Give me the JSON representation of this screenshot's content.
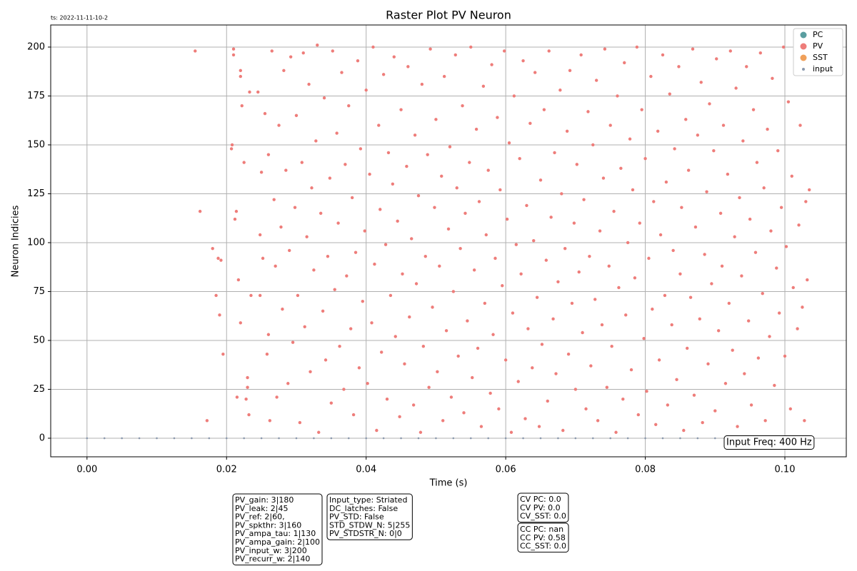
{
  "chart_data": {
    "type": "scatter",
    "title": "Raster Plot PV Neuron",
    "note": "ts: 2022-11-11-10-2",
    "x_label": "Time (s)",
    "y_label": "Neuron Indicies",
    "xlim": [
      -0.0052,
      0.1088
    ],
    "ylim": [
      -9.5,
      211.3
    ],
    "xticks": [
      {
        "value": 0,
        "label": "0.00"
      },
      {
        "value": 0.02,
        "label": "0.02"
      },
      {
        "value": 0.04,
        "label": "0.04"
      },
      {
        "value": 0.06,
        "label": "0.06"
      },
      {
        "value": 0.08,
        "label": "0.08"
      },
      {
        "value": 0.1,
        "label": "0.10"
      }
    ],
    "yticks": [
      0,
      25,
      50,
      75,
      100,
      125,
      150,
      175,
      200
    ],
    "grid": true,
    "legend": "upper right",
    "series": [
      {
        "name": "PC",
        "color": "#5a9ea0",
        "x": [],
        "values": []
      },
      {
        "name": "PV",
        "color": "#ee7d7a",
        "x": [
          0.0155,
          0.0162,
          0.0172,
          0.018,
          0.0185,
          0.0188,
          0.019,
          0.0192,
          0.0195,
          0.0207,
          0.0208,
          0.021,
          0.021,
          0.0212,
          0.0214,
          0.0215,
          0.0217,
          0.022,
          0.022,
          0.022,
          0.0222,
          0.0225,
          0.0228,
          0.023,
          0.023,
          0.0232,
          0.0233,
          0.0235,
          0.0245,
          0.0248,
          0.0248,
          0.025,
          0.0252,
          0.0255,
          0.0258,
          0.026,
          0.026,
          0.0262,
          0.0265,
          0.0268,
          0.027,
          0.0272,
          0.0275,
          0.0278,
          0.028,
          0.0282,
          0.0285,
          0.0288,
          0.029,
          0.0292,
          0.0295,
          0.0298,
          0.03,
          0.0302,
          0.0305,
          0.0308,
          0.031,
          0.0312,
          0.0315,
          0.0318,
          0.032,
          0.0322,
          0.0325,
          0.0328,
          0.033,
          0.0332,
          0.0335,
          0.0338,
          0.034,
          0.0342,
          0.0345,
          0.0348,
          0.035,
          0.0352,
          0.0355,
          0.0358,
          0.036,
          0.0362,
          0.0365,
          0.0368,
          0.037,
          0.0372,
          0.0375,
          0.0378,
          0.038,
          0.0382,
          0.0385,
          0.0388,
          0.039,
          0.0392,
          0.0395,
          0.0398,
          0.04,
          0.0402,
          0.0405,
          0.0408,
          0.041,
          0.0412,
          0.0415,
          0.0418,
          0.042,
          0.0422,
          0.0425,
          0.0428,
          0.043,
          0.0432,
          0.0435,
          0.0438,
          0.044,
          0.0442,
          0.0445,
          0.0448,
          0.045,
          0.0452,
          0.0455,
          0.0458,
          0.046,
          0.0462,
          0.0465,
          0.0468,
          0.047,
          0.0472,
          0.0475,
          0.0478,
          0.048,
          0.0482,
          0.0485,
          0.0488,
          0.049,
          0.0492,
          0.0495,
          0.0498,
          0.05,
          0.0502,
          0.0505,
          0.0508,
          0.051,
          0.0512,
          0.0515,
          0.0518,
          0.052,
          0.0522,
          0.0525,
          0.0528,
          0.053,
          0.0532,
          0.0535,
          0.0538,
          0.054,
          0.0542,
          0.0545,
          0.0548,
          0.055,
          0.0552,
          0.0555,
          0.0558,
          0.056,
          0.0562,
          0.0565,
          0.0568,
          0.057,
          0.0572,
          0.0575,
          0.0578,
          0.058,
          0.0582,
          0.0585,
          0.0588,
          0.059,
          0.0592,
          0.0595,
          0.0598,
          0.06,
          0.0602,
          0.0605,
          0.0608,
          0.061,
          0.0612,
          0.0615,
          0.0618,
          0.062,
          0.0622,
          0.0625,
          0.0628,
          0.063,
          0.0632,
          0.0635,
          0.0638,
          0.064,
          0.0642,
          0.0645,
          0.0648,
          0.065,
          0.0652,
          0.0655,
          0.0658,
          0.066,
          0.0662,
          0.0665,
          0.0668,
          0.067,
          0.0672,
          0.0675,
          0.0678,
          0.068,
          0.0682,
          0.0685,
          0.0688,
          0.069,
          0.0692,
          0.0695,
          0.0698,
          0.07,
          0.0702,
          0.0705,
          0.0708,
          0.071,
          0.0712,
          0.0715,
          0.0718,
          0.072,
          0.0722,
          0.0725,
          0.0728,
          0.073,
          0.0732,
          0.0735,
          0.0738,
          0.074,
          0.0742,
          0.0745,
          0.0748,
          0.075,
          0.0752,
          0.0755,
          0.0758,
          0.076,
          0.0762,
          0.0765,
          0.0768,
          0.077,
          0.0772,
          0.0775,
          0.0778,
          0.078,
          0.0782,
          0.0785,
          0.0788,
          0.079,
          0.0792,
          0.0795,
          0.0798,
          0.08,
          0.0802,
          0.0805,
          0.0808,
          0.081,
          0.0812,
          0.0815,
          0.0818,
          0.082,
          0.0822,
          0.0825,
          0.0828,
          0.083,
          0.0832,
          0.0835,
          0.0838,
          0.084,
          0.0842,
          0.0845,
          0.0848,
          0.085,
          0.0852,
          0.0855,
          0.0858,
          0.086,
          0.0862,
          0.0865,
          0.0868,
          0.087,
          0.0872,
          0.0875,
          0.0878,
          0.088,
          0.0882,
          0.0885,
          0.0888,
          0.089,
          0.0892,
          0.0895,
          0.0898,
          0.09,
          0.0902,
          0.0905,
          0.0908,
          0.091,
          0.0912,
          0.0915,
          0.0918,
          0.092,
          0.0922,
          0.0925,
          0.0928,
          0.093,
          0.0932,
          0.0935,
          0.0938,
          0.094,
          0.0942,
          0.0945,
          0.0948,
          0.095,
          0.0952,
          0.0955,
          0.0958,
          0.096,
          0.0962,
          0.0965,
          0.0968,
          0.097,
          0.0972,
          0.0975,
          0.0978,
          0.098,
          0.0982,
          0.0985,
          0.0988,
          0.099,
          0.0992,
          0.0995,
          0.0998,
          0.1,
          0.1002,
          0.1005,
          0.1008,
          0.101,
          0.1012,
          0.1015,
          0.1018,
          0.102,
          0.1022,
          0.1025,
          0.1028,
          0.103,
          0.1032,
          0.1035
        ],
        "values": [
          198,
          116,
          9,
          97,
          73,
          92,
          63,
          91,
          43,
          148,
          150,
          196,
          199,
          112,
          116,
          21,
          81,
          188,
          185,
          59,
          170,
          141,
          20,
          31,
          26,
          12,
          177,
          73,
          177,
          104,
          73,
          136,
          92,
          166,
          43,
          145,
          53,
          9,
          198,
          122,
          88,
          21,
          160,
          108,
          66,
          188,
          137,
          28,
          96,
          195,
          49,
          118,
          165,
          73,
          8,
          141,
          197,
          57,
          103,
          181,
          34,
          128,
          86,
          152,
          201,
          3,
          115,
          65,
          174,
          40,
          93,
          133,
          18,
          198,
          76,
          156,
          110,
          47,
          187,
          25,
          140,
          83,
          170,
          56,
          123,
          12,
          95,
          193,
          36,
          148,
          70,
          106,
          178,
          28,
          135,
          59,
          200,
          89,
          4,
          160,
          117,
          44,
          186,
          99,
          20,
          146,
          73,
          130,
          195,
          52,
          111,
          11,
          168,
          84,
          38,
          139,
          190,
          62,
          102,
          17,
          155,
          79,
          124,
          3,
          181,
          47,
          93,
          145,
          26,
          199,
          67,
          118,
          163,
          34,
          88,
          134,
          9,
          185,
          55,
          107,
          149,
          21,
          75,
          196,
          128,
          42,
          97,
          170,
          13,
          115,
          60,
          141,
          200,
          31,
          86,
          158,
          46,
          121,
          6,
          180,
          69,
          104,
          137,
          23,
          191,
          53,
          92,
          164,
          15,
          127,
          78,
          198,
          40,
          112,
          151,
          3,
          64,
          175,
          99,
          29,
          143,
          84,
          193,
          10,
          119,
          56,
          161,
          36,
          101,
          187,
          72,
          6,
          132,
          48,
          168,
          91,
          19,
          198,
          113,
          61,
          146,
          33,
          80,
          178,
          125,
          4,
          97,
          157,
          43,
          188,
          69,
          110,
          25,
          140,
          85,
          196,
          54,
          122,
          15,
          167,
          93,
          37,
          150,
          71,
          183,
          9,
          106,
          58,
          133,
          199,
          26,
          88,
          160,
          47,
          116,
          3,
          175,
          77,
          138,
          20,
          192,
          63,
          100,
          153,
          35,
          127,
          82,
          200,
          12,
          110,
          168,
          51,
          143,
          24,
          92,
          185,
          66,
          121,
          7,
          157,
          40,
          104,
          196,
          73,
          131,
          17,
          176,
          58,
          96,
          148,
          30,
          190,
          84,
          118,
          4,
          163,
          46,
          137,
          72,
          199,
          22,
          108,
          155,
          61,
          182,
          8,
          94,
          126,
          38,
          171,
          79,
          147,
          14,
          194,
          55,
          115,
          88,
          160,
          28,
          135,
          69,
          198,
          45,
          103,
          179,
          6,
          123,
          83,
          152,
          33,
          190,
          60,
          112,
          17,
          168,
          95,
          141,
          41,
          197,
          74,
          128,
          9,
          158,
          52,
          106,
          184,
          27,
          87,
          147,
          64,
          118,
          200,
          42,
          98,
          172,
          15,
          134,
          77,
          190,
          56,
          109,
          160,
          67,
          9,
          121,
          81,
          127
        ]
      },
      {
        "name": "SST",
        "color": "#f0a05a",
        "x": [],
        "values": []
      },
      {
        "name": "input",
        "color": "#8a98ad",
        "x": [
          0,
          0.0025,
          0.005,
          0.0075,
          0.01,
          0.0125,
          0.015,
          0.0175,
          0.02,
          0.0225,
          0.025,
          0.0275,
          0.03,
          0.0325,
          0.035,
          0.0375,
          0.04,
          0.0425,
          0.045,
          0.0475,
          0.05,
          0.0525,
          0.055,
          0.0575,
          0.06,
          0.0625,
          0.065,
          0.0675,
          0.07,
          0.0725,
          0.075,
          0.0775,
          0.08,
          0.0825,
          0.085,
          0.0875,
          0.09,
          0.0925,
          0.095,
          0.0975,
          0.1
        ],
        "values": [
          0,
          0,
          0,
          0,
          0,
          0,
          0,
          0,
          0,
          0,
          0,
          0,
          0,
          0,
          0,
          0,
          0,
          0,
          0,
          0,
          0,
          0,
          0,
          0,
          0,
          0,
          0,
          0,
          0,
          0,
          0,
          0,
          0,
          0,
          0,
          0,
          0,
          0,
          0,
          0,
          0
        ]
      }
    ],
    "annotations": [
      {
        "lines": [
          "Input Freq: 400 Hz"
        ]
      },
      {
        "lines": [
          "PV_gain: 3|180",
          "PV_leak: 2|45",
          "PV_ref: 2|60,",
          "PV_spkthr: 3|160",
          "PV_ampa_tau: 1|130",
          "PV_ampa_gain: 2|100",
          "PV_input_w: 3|200",
          "PV_recurr_w: 2|140"
        ]
      },
      {
        "lines": [
          "Input_type: Striated",
          "DC_latches: False",
          "PV_STD: False",
          "STD_STDW_N: 5|255",
          "PV_STDSTR_N: 0|0"
        ]
      },
      {
        "lines": [
          "CV PC: 0.0",
          "CV PV: 0.0",
          "CV_SST: 0.0"
        ]
      },
      {
        "lines": [
          "CC PC: nan",
          "CC PV: 0.58",
          "CC_SST: 0.0"
        ]
      }
    ]
  }
}
